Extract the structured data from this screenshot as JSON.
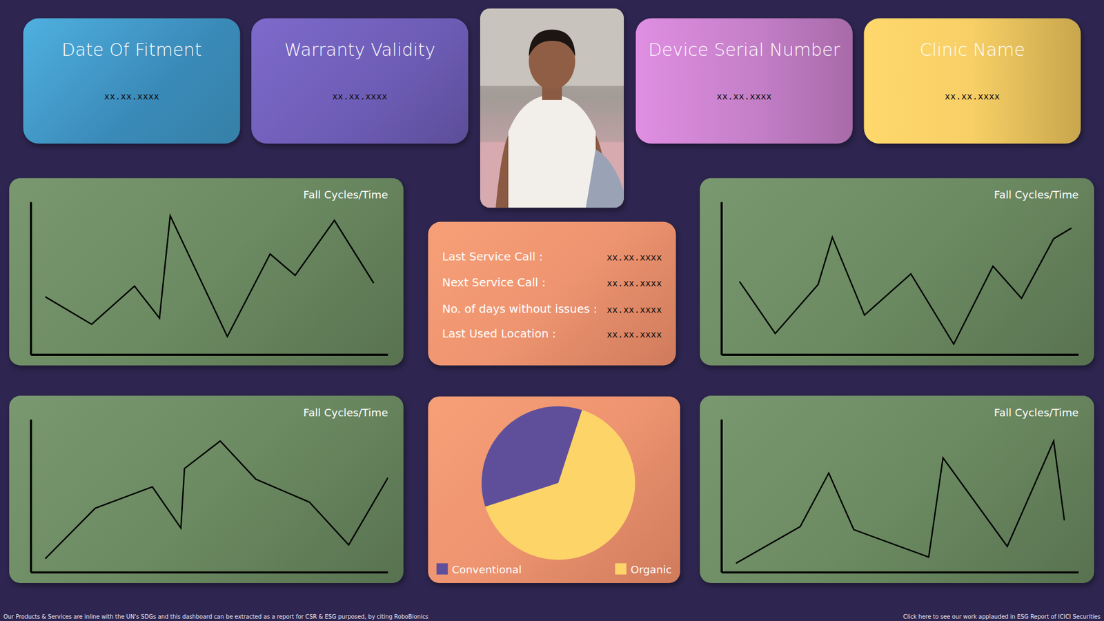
{
  "cards": [
    {
      "title": "Date Of Fitment",
      "value": "xx.xx.xxxx"
    },
    {
      "title": "Warranty Validity",
      "value": "xx.xx.xxxx"
    },
    {
      "title": "Device Serial Number",
      "value": "xx.xx.xxxx"
    },
    {
      "title": "Clinic Name",
      "value": "xx.xx.xxxx"
    }
  ],
  "service_info": [
    {
      "label": "Last Service Call :",
      "value": "xx.xx.xxxx"
    },
    {
      "label": "Next Service Call :",
      "value": "xx.xx.xxxx"
    },
    {
      "label": "No. of days without issues :",
      "value": "xx.xx.xxxx"
    },
    {
      "label": "Last Used Location :",
      "value": "xx.xx.xxxx"
    }
  ],
  "chart_data": [
    {
      "type": "line",
      "title": "Fall Cycles/Time",
      "x": [
        4,
        17,
        29,
        36,
        39,
        55,
        67,
        74,
        85,
        96
      ],
      "values": [
        38,
        20,
        45,
        24,
        91,
        12,
        66,
        52,
        88,
        47
      ],
      "xlim": [
        0,
        100
      ],
      "ylim": [
        0,
        100
      ],
      "tick_labels": false,
      "color": "#000000"
    },
    {
      "type": "line",
      "title": "Fall Cycles/Time",
      "x": [
        5,
        15,
        27,
        31,
        40,
        53,
        65,
        76,
        84,
        93,
        98
      ],
      "values": [
        48,
        14,
        46,
        77,
        26,
        53,
        7,
        58,
        37,
        76,
        83
      ],
      "xlim": [
        0,
        100
      ],
      "ylim": [
        0,
        100
      ],
      "tick_labels": false,
      "color": "#000000"
    },
    {
      "type": "line",
      "title": "Fall Cycles/Time",
      "x": [
        4,
        18,
        34,
        42,
        43,
        53,
        63,
        78,
        89,
        100
      ],
      "values": [
        9,
        42,
        56,
        29,
        68,
        86,
        61,
        46,
        18,
        62
      ],
      "xlim": [
        0,
        100
      ],
      "ylim": [
        0,
        100
      ],
      "tick_labels": false,
      "color": "#000000"
    },
    {
      "type": "line",
      "title": "Fall Cycles/Time",
      "x": [
        4,
        22,
        30,
        37,
        58,
        62,
        80,
        93,
        96
      ],
      "values": [
        6,
        30,
        65,
        28,
        10,
        75,
        17,
        86,
        34
      ],
      "xlim": [
        0,
        100
      ],
      "ylim": [
        0,
        100
      ],
      "tick_labels": false,
      "color": "#000000"
    },
    {
      "type": "pie",
      "categories": [
        "Conventional",
        "Organic"
      ],
      "values": [
        35,
        65
      ],
      "colors": [
        "#5f4f9a",
        "#fdd468"
      ],
      "legend": "bottom"
    }
  ],
  "footer": {
    "left": "Our Products & Services are inline with the UN's SDGs and this dashboard can be extracted as a report for CSR & ESG purposed, by citing RoboBionics",
    "right": "Click here to see our work applauded in ESG Report of ICICI Securities"
  }
}
